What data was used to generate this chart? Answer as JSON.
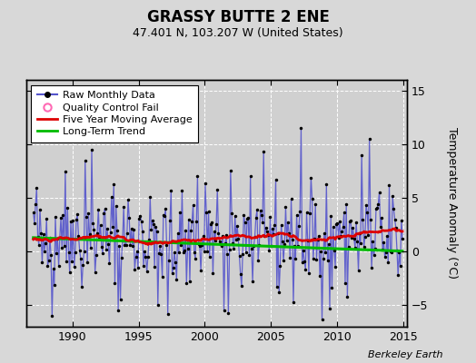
{
  "title": "GRASSY BUTTE 2 ENE",
  "subtitle": "47.401 N, 103.207 W (United States)",
  "ylabel": "Temperature Anomaly (°C)",
  "watermark": "Berkeley Earth",
  "xlim": [
    1986.5,
    2015.3
  ],
  "ylim": [
    -7,
    16
  ],
  "yticks": [
    -5,
    0,
    5,
    10,
    15
  ],
  "xticks": [
    1990,
    1995,
    2000,
    2005,
    2010,
    2015
  ],
  "bg_color": "#d8d8d8",
  "plot_bg_color": "#d0d0d0",
  "raw_line_color": "#5555cc",
  "raw_marker_color": "#000000",
  "ma_color": "#dd0000",
  "trend_color": "#00bb00",
  "qc_color": "#ff69b4",
  "title_fontsize": 12,
  "subtitle_fontsize": 9,
  "tick_fontsize": 9,
  "ylabel_fontsize": 9,
  "legend_fontsize": 8,
  "watermark_fontsize": 8,
  "seed": 42
}
